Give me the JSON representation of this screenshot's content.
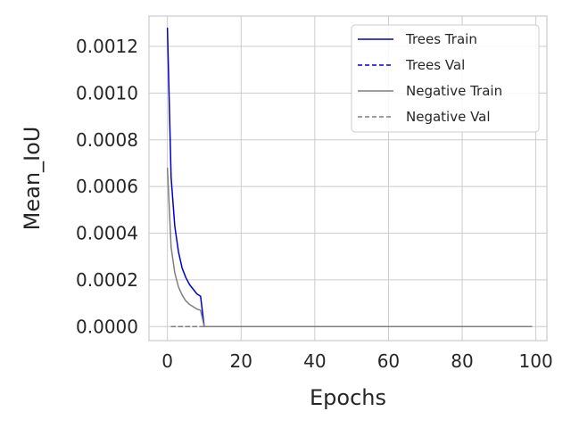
{
  "chart_data": {
    "type": "line",
    "xlabel": "Epochs",
    "ylabel": "Mean_IoU",
    "xlim": [
      -5,
      103
    ],
    "ylim": [
      -6e-05,
      0.00133
    ],
    "xticks": [
      0,
      20,
      40,
      60,
      80,
      100
    ],
    "yticks": [
      0.0,
      0.0002,
      0.0004,
      0.0006,
      0.0008,
      0.001,
      0.0012
    ],
    "xtick_labels": [
      "0",
      "20",
      "40",
      "60",
      "80",
      "100"
    ],
    "ytick_labels": [
      "0.0000",
      "0.0002",
      "0.0004",
      "0.0006",
      "0.0008",
      "0.0010",
      "0.0012"
    ],
    "grid": true,
    "legend_position": "top-right",
    "series": [
      {
        "name": "Trees Train",
        "color": "#0000cc",
        "style": "solid",
        "x": [
          0,
          1,
          2,
          3,
          4,
          5,
          6,
          7,
          8,
          9,
          10,
          99
        ],
        "y": [
          0.00128,
          0.00064,
          0.00043,
          0.00032,
          0.00025,
          0.00021,
          0.00018,
          0.00016,
          0.00014,
          0.00013,
          0.0,
          0.0
        ]
      },
      {
        "name": "Trees Val",
        "color": "#0000cc",
        "style": "dashed",
        "x": [
          1,
          99
        ],
        "y": [
          0.0,
          0.0
        ]
      },
      {
        "name": "Negative Train",
        "color": "#7f7f7f",
        "style": "solid",
        "x": [
          0,
          1,
          2,
          3,
          4,
          5,
          6,
          7,
          8,
          9,
          10,
          99
        ],
        "y": [
          0.00068,
          0.00034,
          0.00023,
          0.00017,
          0.000135,
          0.00011,
          9.5e-05,
          8.5e-05,
          7.5e-05,
          7e-05,
          0.0,
          0.0
        ]
      },
      {
        "name": "Negative Val",
        "color": "#7f7f7f",
        "style": "dashed",
        "x": [
          1,
          99
        ],
        "y": [
          0.0,
          0.0
        ]
      }
    ]
  }
}
